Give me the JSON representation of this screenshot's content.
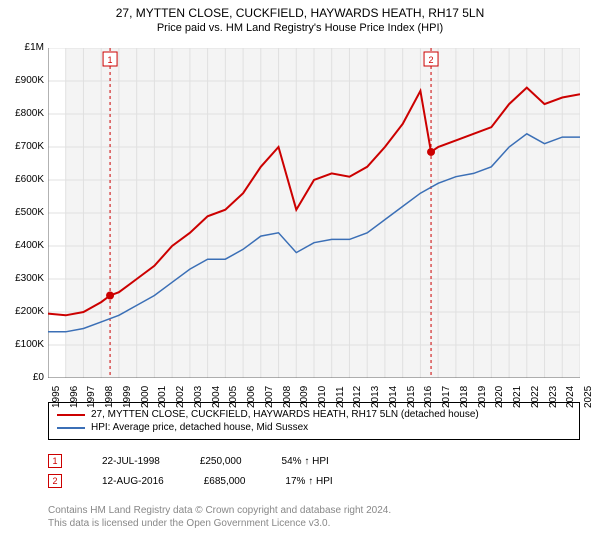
{
  "title": "27, MYTTEN CLOSE, CUCKFIELD, HAYWARDS HEATH, RH17 5LN",
  "subtitle": "Price paid vs. HM Land Registry's House Price Index (HPI)",
  "chart": {
    "type": "line",
    "background_color": "#ffffff",
    "plot_background_color": "#f4f4f4",
    "grid_color": "#e0e0e0",
    "axis_color": "#666666",
    "text_color": "#000000",
    "xlim": [
      1995,
      2025
    ],
    "ylim": [
      0,
      1000000
    ],
    "ytick_step": 100000,
    "yticks": [
      0,
      100000,
      200000,
      300000,
      400000,
      500000,
      600000,
      700000,
      800000,
      900000,
      1000000
    ],
    "yticklabels": [
      "£0",
      "£100K",
      "£200K",
      "£300K",
      "£400K",
      "£500K",
      "£600K",
      "£700K",
      "£800K",
      "£900K",
      "£1M"
    ],
    "xticks": [
      1995,
      1996,
      1997,
      1998,
      1999,
      2000,
      2001,
      2002,
      2003,
      2004,
      2005,
      2006,
      2007,
      2008,
      2009,
      2010,
      2011,
      2012,
      2013,
      2014,
      2015,
      2016,
      2017,
      2018,
      2019,
      2020,
      2021,
      2022,
      2023,
      2024,
      2025
    ],
    "series": [
      {
        "name": "27, MYTTEN CLOSE, CUCKFIELD, HAYWARDS HEATH, RH17 5LN (detached house)",
        "color": "#cc0000",
        "line_width": 2,
        "x": [
          1995,
          1996,
          1997,
          1998,
          1998.5,
          1999,
          2000,
          2001,
          2002,
          2003,
          2004,
          2005,
          2006,
          2007,
          2008,
          2009,
          2010,
          2011,
          2012,
          2013,
          2014,
          2015,
          2016,
          2016.6,
          2017,
          2018,
          2019,
          2020,
          2021,
          2022,
          2023,
          2024,
          2025
        ],
        "y": [
          195000,
          190000,
          200000,
          230000,
          250000,
          260000,
          300000,
          340000,
          400000,
          440000,
          490000,
          510000,
          560000,
          640000,
          700000,
          510000,
          600000,
          620000,
          610000,
          640000,
          700000,
          770000,
          870000,
          685000,
          700000,
          720000,
          740000,
          760000,
          830000,
          880000,
          830000,
          850000,
          860000
        ]
      },
      {
        "name": "HPI: Average price, detached house, Mid Sussex",
        "color": "#3b6fb6",
        "line_width": 1.5,
        "x": [
          1995,
          1996,
          1997,
          1998,
          1999,
          2000,
          2001,
          2002,
          2003,
          2004,
          2005,
          2006,
          2007,
          2008,
          2009,
          2010,
          2011,
          2012,
          2013,
          2014,
          2015,
          2016,
          2017,
          2018,
          2019,
          2020,
          2021,
          2022,
          2023,
          2024,
          2025
        ],
        "y": [
          140000,
          140000,
          150000,
          170000,
          190000,
          220000,
          250000,
          290000,
          330000,
          360000,
          360000,
          390000,
          430000,
          440000,
          380000,
          410000,
          420000,
          420000,
          440000,
          480000,
          520000,
          560000,
          590000,
          610000,
          620000,
          640000,
          700000,
          740000,
          710000,
          730000,
          730000
        ]
      }
    ],
    "sale_markers": [
      {
        "index": 1,
        "x": 1998.5,
        "y": 250000,
        "color": "#cc0000",
        "date": "22-JUL-1998",
        "price": "£250,000",
        "vs_hpi": "54% ↑ HPI"
      },
      {
        "index": 2,
        "x": 2016.6,
        "y": 685000,
        "color": "#cc0000",
        "date": "12-AUG-2016",
        "price": "£685,000",
        "vs_hpi": "17% ↑ HPI"
      }
    ],
    "marker_dash_color": "#cc0000",
    "marker_dot_fill": "#cc0000",
    "marker_box_border": "#cc0000",
    "label_fontsize": 10,
    "title_fontsize": 12
  },
  "legend": {
    "border_color": "#000000"
  },
  "footer": {
    "line1": "Contains HM Land Registry data © Crown copyright and database right 2024.",
    "line2": "This data is licensed under the Open Government Licence v3.0.",
    "color": "#888888"
  }
}
